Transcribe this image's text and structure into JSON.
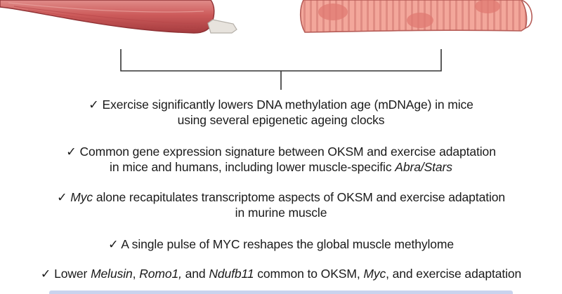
{
  "colors": {
    "muscle_dark": "#a43b3e",
    "muscle_mid": "#cd5b5b",
    "muscle_light": "#e08c89",
    "tendon": "#e7e3dd",
    "fiber_base": "#f3a79b",
    "fiber_stripe": "#e08c83",
    "fiber_nucleus": "#e07a72",
    "fiber_outline": "#b65d58",
    "bracket": "#333333",
    "bottom_bar": "#c9d3ee"
  },
  "icons": {
    "left": "whole-muscle-icon",
    "right": "muscle-fiber-icon"
  },
  "findings": [
    {
      "lines": [
        [
          {
            "t": "✓ Exercise significantly lowers DNA methylation age (mDNAge) in mice",
            "i": false
          }
        ],
        [
          {
            "t": "using several epigenetic ageing clocks",
            "i": false
          }
        ]
      ]
    },
    {
      "lines": [
        [
          {
            "t": "✓ Common gene expression signature between OKSM and exercise adaptation",
            "i": false
          }
        ],
        [
          {
            "t": "in mice and humans, including lower muscle-specific ",
            "i": false
          },
          {
            "t": "Abra/Stars",
            "i": true
          }
        ]
      ]
    },
    {
      "lines": [
        [
          {
            "t": "✓ ",
            "i": false
          },
          {
            "t": "Myc",
            "i": true
          },
          {
            "t": " alone recapitulates transcriptome aspects of OKSM and exercise adaptation",
            "i": false
          }
        ],
        [
          {
            "t": "in murine muscle",
            "i": false
          }
        ]
      ]
    },
    {
      "lines": [
        [
          {
            "t": "✓ A single pulse of MYC reshapes the global muscle methylome",
            "i": false
          }
        ]
      ]
    },
    {
      "lines": [
        [
          {
            "t": "✓ Lower ",
            "i": false
          },
          {
            "t": "Melusin",
            "i": true
          },
          {
            "t": ", ",
            "i": false
          },
          {
            "t": "Romo1,",
            "i": true
          },
          {
            "t": " and ",
            "i": false
          },
          {
            "t": "Ndufb11",
            "i": true
          },
          {
            "t": " common to OKSM, ",
            "i": false
          },
          {
            "t": "Myc",
            "i": true
          },
          {
            "t": ", and exercise adaptation",
            "i": false
          }
        ]
      ]
    }
  ]
}
